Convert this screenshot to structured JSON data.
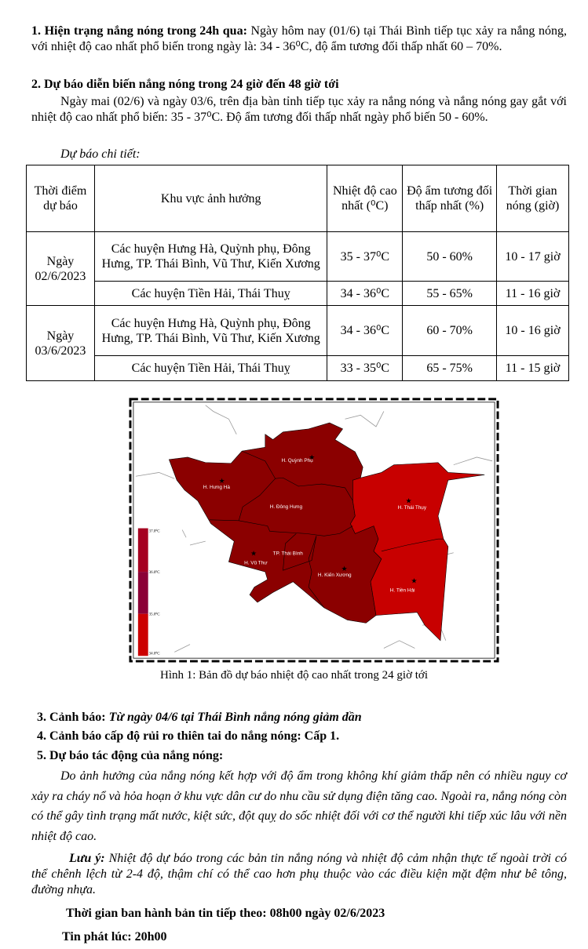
{
  "s1": {
    "heading": "1. Hiện trạng nắng nóng trong 24h qua:",
    "text": " Ngày hôm nay (01/6) tại Thái Bình tiếp tục xảy ra nắng nóng, với nhiệt độ cao nhất phổ biến trong ngày là: 34 - 36⁰C, độ ẩm tương đối thấp nhất 60 – 70%."
  },
  "s2": {
    "heading": "2. Dự báo diễn biến nắng nóng trong 24 giờ đến 48 giờ tới",
    "text": "Ngày mai (02/6) và ngày 03/6, trên địa bàn tỉnh tiếp tục xảy ra nắng nóng và nắng nóng gay gắt với nhiệt độ cao nhất phổ biến: 35 - 37⁰C. Độ ẩm tương đối thấp nhất ngày phổ biến 50 - 60%.",
    "detail_label": "Dự báo chi tiết:"
  },
  "table": {
    "headers": [
      "Thời điểm dự báo",
      "Khu vực ảnh hưởng",
      "Nhiệt độ cao nhất (⁰C)",
      "Độ ẩm tương đối thấp nhất (%)",
      "Thời gian nóng (giờ)"
    ],
    "groups": [
      {
        "date": "Ngày 02/6/2023",
        "rows": [
          {
            "area": "Các huyện Hưng Hà, Quỳnh phụ, Đông Hưng, TP. Thái Bình, Vũ Thư, Kiến Xương",
            "temp": "35 - 37⁰C",
            "humidity": "50 - 60%",
            "hours": "10 - 17 giờ"
          },
          {
            "area": "Các huyện Tiền Hải, Thái Thuỵ",
            "temp": "34 - 36⁰C",
            "humidity": "55 - 65%",
            "hours": "11 - 16 giờ"
          }
        ]
      },
      {
        "date": "Ngày 03/6/2023",
        "rows": [
          {
            "area": "Các huyện Hưng Hà, Quỳnh phụ, Đông Hưng, TP. Thái Bình, Vũ Thư, Kiến Xương",
            "temp": "34 - 36⁰C",
            "humidity": "60 - 70%",
            "hours": "10 - 16 giờ"
          },
          {
            "area": "Các huyện Tiền Hải, Thái Thuỵ",
            "temp": "33 - 35⁰C",
            "humidity": "65 - 75%",
            "hours": "11 - 15 giờ"
          }
        ]
      }
    ]
  },
  "map": {
    "districts": {
      "quynh_phu": "H. Quỳnh Phụ",
      "hung_ha": "H. Hưng Hà",
      "dong_hung": "H. Đông Hưng",
      "thai_thuy": "H. Thái Thụy",
      "tp_thai_binh": "TP. Thái Bình",
      "vu_thu": "H. Vũ Thư",
      "kien_xuong": "H. Kiến Xương",
      "tien_hai": "H. Tiền Hải"
    },
    "legend": [
      "37.0⁰C",
      "36.0⁰C",
      "35.0⁰C",
      "34.0⁰C"
    ],
    "colors": {
      "hot": "#8b0000",
      "warm": "#c80000",
      "legend_top": "#a50021",
      "legend_mid": "#8b0036",
      "legend_low": "#cc0000"
    },
    "caption": "Hình 1: Bản đồ dự báo nhiệt độ cao nhất trong 24 giờ tới"
  },
  "s3": {
    "heading": "3. Cảnh báo: ",
    "text": "Từ ngày 04/6 tại Thái Bình nắng nóng giảm dần"
  },
  "s4": {
    "heading": "4. Cảnh báo cấp độ rủi ro thiên tai do nắng nóng: Cấp 1."
  },
  "s5": {
    "heading": "5. Dự báo tác động của nắng nóng:",
    "text": "Do ảnh hưởng của nắng nóng kết hợp với độ ẩm trong không khí giảm thấp nên có nhiều nguy cơ xảy ra cháy nổ và hỏa hoạn ở khu vực dân cư do nhu cầu sử dụng điện tăng cao. Ngoài ra, nắng nóng còn có thể gây tình trạng mất nước, kiệt sức, đột quỵ do sốc nhiệt đối với cơ thể người khi tiếp xúc lâu với nền nhiệt độ cao."
  },
  "note": {
    "label": "Lưu ý:",
    "text": " Nhiệt độ dự báo trong các bản tin nắng nóng và nhiệt độ cảm nhận thực tế ngoài trời có thể chênh lệch từ 2-4 độ, thậm chí có thể cao hơn phụ thuộc vào các điều kiện mặt đệm như bê tông, đường nhựa."
  },
  "next_issue": "Thời gian ban hành bản tin tiếp theo: 08h00 ngày 02/6/2023",
  "issued_at": "Tin phát lúc: 20h00"
}
